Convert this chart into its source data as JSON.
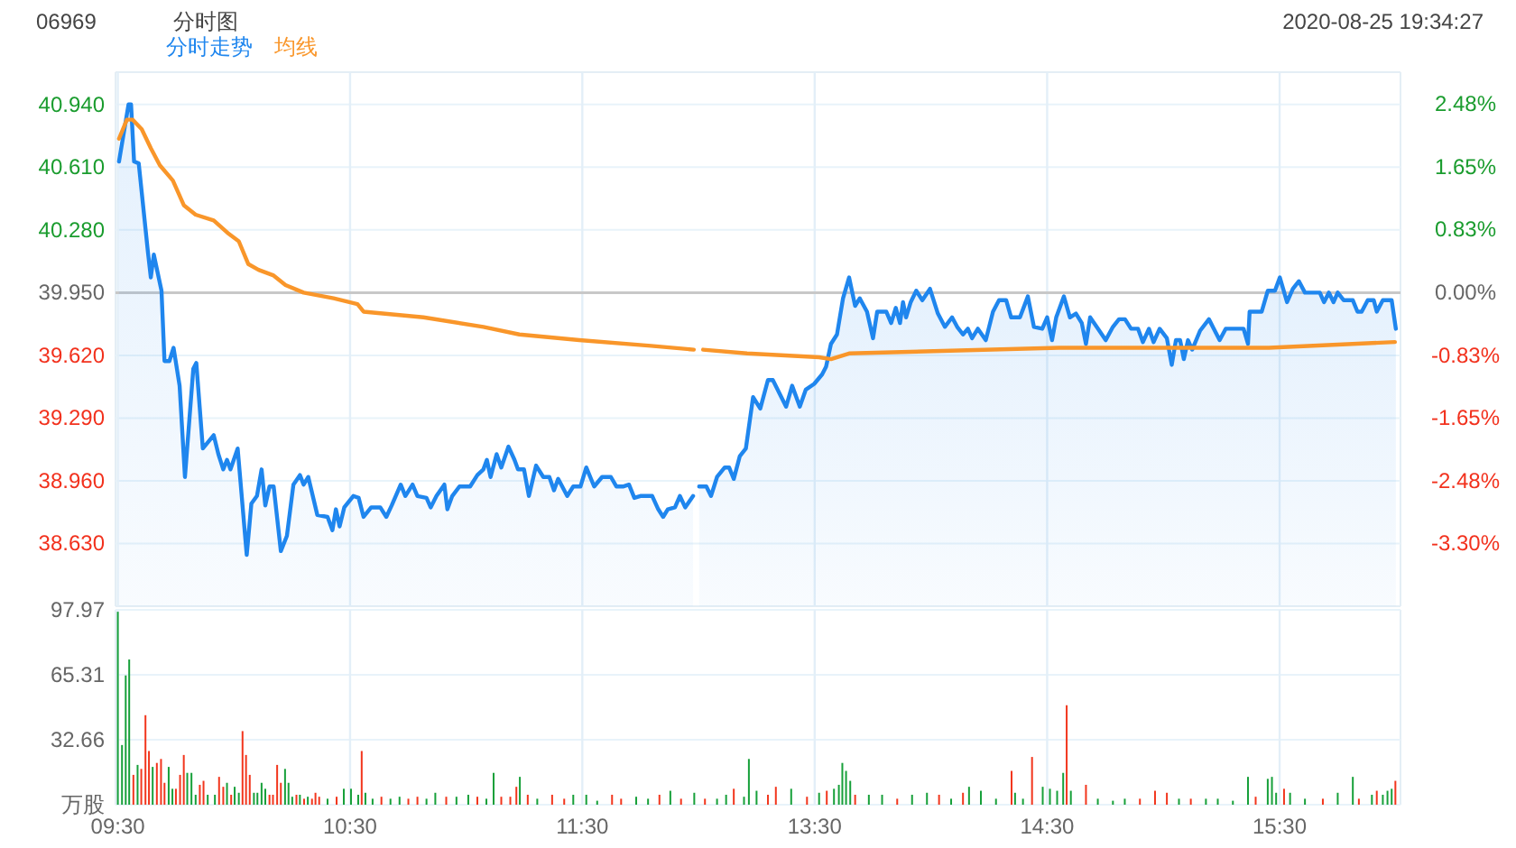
{
  "chart_data": [
    {
      "type": "area",
      "title": "分时图",
      "subtitle": "06969",
      "annotations": [
        "2020-08-25 19:34:27"
      ],
      "legend": "top left",
      "grid": true,
      "tick_labels": "y",
      "xlim": [
        9.49,
        12.0
      ],
      "xticks": [
        {
          "value": 9.5,
          "label": null
        },
        {
          "value": 10.5,
          "label": null
        },
        {
          "value": 11.5,
          "label": null
        }
      ],
      "ylim": [
        38.3,
        41.11
      ],
      "yticks": [
        {
          "value": 40.94,
          "label": "40.940"
        },
        {
          "value": 40.61,
          "label": "40.610"
        },
        {
          "value": 40.28,
          "label": "40.280"
        },
        {
          "value": 39.95,
          "label": "39.950"
        },
        {
          "value": 39.62,
          "label": "39.620"
        },
        {
          "value": 39.29,
          "label": "39.290"
        },
        {
          "value": 38.96,
          "label": "38.960"
        },
        {
          "value": 38.63,
          "label": "38.630"
        }
      ],
      "ref_lines": [
        {
          "axis": "y",
          "value": 39.95,
          "color": "#c8c8c8"
        }
      ],
      "series": [
        {
          "name": "分时走势",
          "color": "#1f86ee",
          "x": [
            9.505,
            9.546,
            9.557,
            9.57,
            9.59,
            9.629,
            9.642,
            9.655,
            9.688,
            9.701,
            9.722,
            9.74,
            9.766,
            9.789,
            9.825,
            9.838,
            9.866,
            9.913,
            9.933,
            9.954,
            9.97,
            9.985,
            10.016,
            10.055,
            10.075,
            10.099,
            10.119,
            10.135,
            10.153,
            10.171,
            10.202,
            10.228,
            10.256,
            10.284,
            10.3,
            10.32,
            10.359,
            10.403,
            10.424,
            10.439,
            10.455,
            10.475,
            10.514,
            10.537,
            10.558,
            10.591,
            10.63,
            10.656,
            10.679,
            10.718,
            10.738,
            10.769,
            10.79,
            10.829,
            10.847,
            10.872,
            10.906,
            10.919,
            10.94,
            10.971,
            11.017,
            11.048,
            11.074,
            11.089,
            11.105,
            11.131,
            11.151,
            11.182,
            11.208,
            11.223,
            11.249,
            11.27,
            11.301,
            11.332,
            11.358,
            11.378,
            11.396,
            11.435,
            11.461,
            11.492,
            11.517,
            11.551,
            11.585,
            11.623,
            11.647,
            11.675,
            11.701,
            11.724,
            11.75,
            11.801,
            11.827,
            11.848,
            11.868,
            11.899,
            11.92,
            11.943,
            11.977
          ],
          "values": [
            40.64,
            40.94,
            40.94,
            40.64,
            40.63,
            40.17,
            40.03,
            40.15,
            39.96,
            39.59,
            39.59,
            39.66,
            39.46,
            38.98,
            39.55,
            39.58,
            39.13,
            39.2,
            39.1,
            39.02,
            39.07,
            39.02,
            39.13,
            38.57,
            38.84,
            38.88,
            39.02,
            38.83,
            38.93,
            38.93,
            38.59,
            38.67,
            38.94,
            38.99,
            38.94,
            38.98,
            38.78,
            38.77,
            38.7,
            38.81,
            38.72,
            38.82,
            38.88,
            38.87,
            38.77,
            38.82,
            38.82,
            38.77,
            38.83,
            38.94,
            38.88,
            38.94,
            38.88,
            38.87,
            38.82,
            38.88,
            38.94,
            38.81,
            38.88,
            38.93,
            38.93,
            38.99,
            39.02,
            39.07,
            38.98,
            39.1,
            39.03,
            39.14,
            39.07,
            39.02,
            39.02,
            38.88,
            39.04,
            38.98,
            38.98,
            38.91,
            38.97,
            38.88,
            38.93,
            38.93,
            39.03,
            38.93,
            38.98,
            38.98,
            38.93,
            38.93,
            38.94,
            38.87,
            38.88,
            38.88,
            38.81,
            38.77,
            38.81,
            38.82,
            38.88,
            38.82,
            38.88
          ]
        },
        {
          "name": "均线",
          "type": "line",
          "color": "#f9962a",
          "x": [
            9.505,
            9.539,
            9.564,
            9.603,
            9.642,
            9.681,
            9.737,
            9.784,
            9.835,
            9.913,
            9.977,
            10.021,
            10.062,
            10.106,
            10.171,
            10.222,
            10.3,
            10.429,
            10.532,
            10.558,
            10.816,
            11.074,
            11.229,
            11.487,
            11.796,
            11.98
          ],
          "values": [
            40.76,
            40.86,
            40.86,
            40.81,
            40.71,
            40.62,
            40.54,
            40.41,
            40.36,
            40.33,
            40.26,
            40.22,
            40.1,
            40.07,
            40.04,
            39.99,
            39.95,
            39.92,
            39.89,
            39.85,
            39.82,
            39.77,
            39.73,
            39.7,
            39.67,
            39.65
          ]
        }
      ]
    },
    {
      "type": "area",
      "grid": true,
      "tick_labels": false,
      "xlim": [
        13.0,
        16.02
      ],
      "xticks": [
        {
          "value": 13.5,
          "label": null
        },
        {
          "value": 14.5,
          "label": null
        },
        {
          "value": 15.5,
          "label": null
        }
      ],
      "ylim": [
        38.3,
        41.11
      ],
      "yticks": [
        {
          "value": 40.94,
          "label": null
        },
        {
          "value": 40.61,
          "label": null
        },
        {
          "value": 40.28,
          "label": null
        },
        {
          "value": 39.95,
          "label": null
        },
        {
          "value": 39.62,
          "label": null
        },
        {
          "value": 39.29,
          "label": null
        },
        {
          "value": 38.96,
          "label": null
        },
        {
          "value": 38.63,
          "label": null
        }
      ],
      "y2lim": [
        -4.13,
        2.9
      ],
      "y2ticks": [
        {
          "value": 2.48,
          "label": "2.48%"
        },
        {
          "value": 1.65,
          "label": "1.65%"
        },
        {
          "value": 0.83,
          "label": "0.83%"
        },
        {
          "value": 0,
          "label": "0.00%"
        },
        {
          "value": -0.83,
          "label": "-0.83%"
        },
        {
          "value": -1.65,
          "label": "-1.65%"
        },
        {
          "value": -2.48,
          "label": "-2.48%"
        },
        {
          "value": -3.3,
          "label": "-3.30%"
        }
      ],
      "ref_lines": [
        {
          "axis": "y",
          "value": 39.95,
          "color": "#c8c8c8"
        }
      ],
      "series": [
        {
          "color": "#1f86ee",
          "x": [
            13.003,
            13.034,
            13.054,
            13.08,
            13.113,
            13.132,
            13.152,
            13.178,
            13.204,
            13.235,
            13.266,
            13.299,
            13.32,
            13.377,
            13.403,
            13.436,
            13.462,
            13.498,
            13.532,
            13.549,
            13.57,
            13.596,
            13.622,
            13.648,
            13.674,
            13.694,
            13.725,
            13.751,
            13.769,
            13.808,
            13.829,
            13.849,
            13.867,
            13.88,
            13.893,
            13.913,
            13.937,
            13.963,
            13.996,
            14.03,
            14.06,
            14.091,
            14.113,
            14.138,
            14.159,
            14.177,
            14.202,
            14.236,
            14.267,
            14.293,
            14.324,
            14.345,
            14.383,
            14.417,
            14.443,
            14.479,
            14.5,
            14.521,
            14.539,
            14.572,
            14.598,
            14.624,
            14.649,
            14.667,
            14.685,
            14.719,
            14.752,
            14.783,
            14.809,
            14.835,
            14.861,
            14.891,
            14.912,
            14.938,
            14.958,
            14.984,
            15.015,
            15.036,
            15.054,
            15.072,
            15.088,
            15.106,
            15.124,
            15.158,
            15.196,
            15.217,
            15.242,
            15.268,
            15.345,
            15.364,
            15.371,
            15.397,
            15.423,
            15.449,
            15.48,
            15.501,
            15.532,
            15.557,
            15.583,
            15.609,
            15.673,
            15.691,
            15.712,
            15.732,
            15.75,
            15.776,
            15.815,
            15.835,
            15.853,
            15.879,
            15.905,
            15.918,
            15.944,
            15.982,
            16.0
          ],
          "values": [
            38.93,
            38.93,
            38.88,
            38.98,
            39.03,
            39.03,
            38.97,
            39.09,
            39.13,
            39.4,
            39.34,
            39.49,
            39.49,
            39.35,
            39.46,
            39.35,
            39.44,
            39.47,
            39.52,
            39.56,
            39.68,
            39.73,
            39.92,
            40.03,
            39.88,
            39.92,
            39.85,
            39.71,
            39.85,
            39.85,
            39.79,
            39.87,
            39.79,
            39.9,
            39.82,
            39.9,
            39.96,
            39.91,
            39.97,
            39.84,
            39.77,
            39.82,
            39.77,
            39.73,
            39.76,
            39.71,
            39.76,
            39.7,
            39.85,
            39.91,
            39.91,
            39.82,
            39.82,
            39.93,
            39.77,
            39.76,
            39.82,
            39.7,
            39.82,
            39.93,
            39.82,
            39.84,
            39.79,
            39.68,
            39.82,
            39.76,
            39.7,
            39.77,
            39.81,
            39.81,
            39.76,
            39.76,
            39.69,
            39.76,
            39.69,
            39.76,
            39.71,
            39.57,
            39.7,
            39.7,
            39.6,
            39.7,
            39.65,
            39.75,
            39.81,
            39.76,
            39.7,
            39.76,
            39.76,
            39.68,
            39.85,
            39.85,
            39.85,
            39.96,
            39.96,
            40.03,
            39.9,
            39.97,
            40.01,
            39.95,
            39.95,
            39.9,
            39.95,
            39.9,
            39.95,
            39.91,
            39.91,
            39.85,
            39.85,
            39.91,
            39.91,
            39.85,
            39.91,
            39.91,
            39.76
          ]
        },
        {
          "type": "line",
          "color": "#f9962a",
          "x": [
            13.02,
            13.209,
            13.519,
            13.57,
            13.648,
            14.551,
            15.454,
            15.996
          ],
          "values": [
            39.65,
            39.63,
            39.61,
            39.6,
            39.63,
            39.66,
            39.66,
            39.69
          ]
        }
      ]
    },
    {
      "type": "bar",
      "grid": true,
      "xlim": [
        9.49,
        12.0
      ],
      "xticks": [
        {
          "value": 9.5,
          "label": "09:30"
        },
        {
          "value": 10.5,
          "label": "10:30"
        },
        {
          "value": 11.5,
          "label": "11:30"
        }
      ],
      "ylim": [
        0,
        97.97
      ],
      "yticks": [
        {
          "value": 0,
          "label": "万股"
        },
        32.66,
        65.31,
        97.97
      ],
      "x": [
        9.5,
        9.518,
        9.534,
        9.549,
        9.567,
        9.585,
        9.601,
        9.619,
        9.634,
        9.65,
        9.668,
        9.686,
        9.701,
        9.719,
        9.735,
        9.75,
        9.768,
        9.784,
        9.799,
        9.817,
        9.835,
        9.853,
        9.869,
        9.887,
        9.918,
        9.936,
        9.954,
        9.97,
        9.988,
        10.003,
        10.021,
        10.037,
        10.052,
        10.068,
        10.086,
        10.101,
        10.119,
        10.135,
        10.153,
        10.168,
        10.186,
        10.202,
        10.22,
        10.235,
        10.251,
        10.269,
        10.284,
        10.302,
        10.318,
        10.336,
        10.351,
        10.367,
        10.403,
        10.442,
        10.473,
        10.504,
        10.535,
        10.55,
        10.566,
        10.597,
        10.635,
        10.674,
        10.713,
        10.751,
        10.79,
        10.829,
        10.867,
        10.914,
        10.958,
        11.009,
        11.048,
        11.087,
        11.118,
        11.151,
        11.19,
        11.216,
        11.231,
        11.265,
        11.306,
        11.37,
        11.422,
        11.461,
        11.517,
        11.564,
        11.628,
        11.667,
        11.732,
        11.783,
        11.832,
        11.879,
        11.925,
        11.982
      ],
      "values": [
        97,
        30,
        65,
        73,
        15,
        20,
        18,
        45,
        27,
        19,
        21,
        23,
        11,
        19,
        8,
        8,
        15,
        25,
        16,
        16,
        5,
        10,
        12,
        5,
        5,
        14,
        9,
        11,
        5,
        9,
        6,
        37,
        25,
        15,
        6,
        6,
        11,
        8,
        5,
        5,
        20,
        11,
        18,
        11,
        4,
        5,
        5,
        3,
        4,
        3,
        6,
        4,
        3,
        4,
        8,
        8,
        5,
        27,
        6,
        3,
        4,
        3,
        4,
        3,
        4,
        3,
        6,
        4,
        4,
        5,
        4,
        3,
        16,
        4,
        4,
        9,
        14,
        5,
        3,
        5,
        3,
        5,
        5,
        2,
        5,
        3,
        4,
        3,
        5,
        7,
        3,
        6
      ],
      "colors": [
        "#17a03a",
        "#17a03a",
        "#17a03a",
        "#17a03a",
        "#f2361d",
        "#17a03a",
        "#f2361d",
        "#f2361d",
        "#f2361d",
        "#17a03a",
        "#f2361d",
        "#f2361d",
        "#f2361d",
        "#17a03a",
        "#17a03a",
        "#f2361d",
        "#f2361d",
        "#f2361d",
        "#17a03a",
        "#17a03a",
        "#17a03a",
        "#f2361d",
        "#f2361d",
        "#17a03a",
        "#17a03a",
        "#f2361d",
        "#f2361d",
        "#17a03a",
        "#f2361d",
        "#17a03a",
        "#17a03a",
        "#f2361d",
        "#f2361d",
        "#f2361d",
        "#17a03a",
        "#17a03a",
        "#17a03a",
        "#17a03a",
        "#f2361d",
        "#f2361d",
        "#f2361d",
        "#f2361d",
        "#17a03a",
        "#17a03a",
        "#17a03a",
        "#f2361d",
        "#17a03a",
        "#f2361d",
        "#17a03a",
        "#f2361d",
        "#f2361d",
        "#f2361d",
        "#17a03a",
        "#f2361d",
        "#17a03a",
        "#17a03a",
        "#17a03a",
        "#f2361d",
        "#17a03a",
        "#17a03a",
        "#f2361d",
        "#17a03a",
        "#17a03a",
        "#f2361d",
        "#f2361d",
        "#17a03a",
        "#17a03a",
        "#f2361d",
        "#17a03a",
        "#17a03a",
        "#f2361d",
        "#17a03a",
        "#17a03a",
        "#f2361d",
        "#f2361d",
        "#f2361d",
        "#17a03a",
        "#f2361d",
        "#17a03a",
        "#f2361d",
        "#f2361d",
        "#17a03a",
        "#17a03a",
        "#17a03a",
        "#f2361d",
        "#f2361d",
        "#17a03a",
        "#17a03a",
        "#f2361d",
        "#17a03a",
        "#f2361d",
        "#17a03a"
      ]
    },
    {
      "type": "bar",
      "grid": true,
      "tick_labels": "x",
      "xlim": [
        13.0,
        16.02
      ],
      "xticks": [
        {
          "value": 13.5,
          "label": "13:30"
        },
        {
          "value": 14.5,
          "label": "14:30"
        },
        {
          "value": 15.5,
          "label": "15:30"
        }
      ],
      "ylim": [
        0,
        97.97
      ],
      "yticks": [
        {
          "value": 0,
          "label": null
        },
        {
          "value": 32.66,
          "label": null
        },
        {
          "value": 65.31,
          "label": null
        },
        {
          "value": 97.97,
          "label": null
        }
      ],
      "x": [
        13.028,
        13.08,
        13.119,
        13.152,
        13.196,
        13.217,
        13.25,
        13.299,
        13.333,
        13.399,
        13.467,
        13.519,
        13.552,
        13.583,
        13.604,
        13.619,
        13.635,
        13.653,
        13.674,
        13.733,
        13.79,
        13.855,
        13.919,
        13.983,
        14.035,
        14.087,
        14.138,
        14.164,
        14.215,
        14.28,
        14.347,
        14.362,
        14.396,
        14.435,
        14.481,
        14.512,
        14.543,
        14.569,
        14.584,
        14.602,
        14.667,
        14.718,
        14.783,
        14.834,
        14.899,
        14.964,
        15.015,
        15.067,
        15.118,
        15.183,
        15.234,
        15.299,
        15.364,
        15.397,
        15.449,
        15.467,
        15.485,
        15.519,
        15.545,
        15.609,
        15.686,
        15.75,
        15.815,
        15.841,
        15.897,
        15.918,
        15.944,
        15.964,
        15.982,
        15.998
      ],
      "values": [
        3,
        3,
        5,
        8,
        4,
        23,
        7,
        5,
        9,
        8,
        4,
        6,
        7,
        8,
        10,
        21,
        17,
        12,
        5,
        5,
        5,
        3,
        5,
        6,
        5,
        3,
        6,
        9,
        7,
        3,
        17,
        6,
        3,
        24,
        9,
        8,
        7,
        16,
        50,
        7,
        10,
        3,
        2,
        3,
        3,
        7,
        6,
        3,
        3,
        3,
        3,
        2,
        14,
        4,
        13,
        14,
        6,
        8,
        6,
        3,
        3,
        6,
        14,
        3,
        5,
        7,
        5,
        7,
        8,
        12
      ],
      "colors": [
        "#f2361d",
        "#17a03a",
        "#17a03a",
        "#f2361d",
        "#17a03a",
        "#17a03a",
        "#17a03a",
        "#f2361d",
        "#f2361d",
        "#17a03a",
        "#f2361d",
        "#17a03a",
        "#f2361d",
        "#17a03a",
        "#17a03a",
        "#17a03a",
        "#17a03a",
        "#17a03a",
        "#f2361d",
        "#17a03a",
        "#17a03a",
        "#f2361d",
        "#17a03a",
        "#17a03a",
        "#f2361d",
        "#17a03a",
        "#f2361d",
        "#17a03a",
        "#17a03a",
        "#17a03a",
        "#f2361d",
        "#17a03a",
        "#17a03a",
        "#f2361d",
        "#17a03a",
        "#17a03a",
        "#17a03a",
        "#17a03a",
        "#f2361d",
        "#17a03a",
        "#f2361d",
        "#17a03a",
        "#17a03a",
        "#17a03a",
        "#f2361d",
        "#f2361d",
        "#f2361d",
        "#17a03a",
        "#f2361d",
        "#17a03a",
        "#17a03a",
        "#17a03a",
        "#17a03a",
        "#f2361d",
        "#17a03a",
        "#17a03a",
        "#17a03a",
        "#f2361d",
        "#17a03a",
        "#17a03a",
        "#f2361d",
        "#17a03a",
        "#17a03a",
        "#f2361d",
        "#17a03a",
        "#f2361d",
        "#17a03a",
        "#17a03a",
        "#17a03a",
        "#f2361d"
      ]
    }
  ]
}
